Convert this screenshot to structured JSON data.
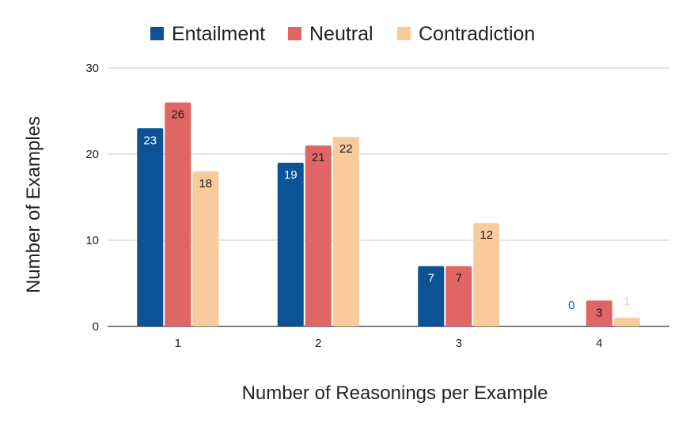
{
  "chart_data": {
    "type": "bar",
    "title": "",
    "categories": [
      "1",
      "2",
      "3",
      "4"
    ],
    "series": [
      {
        "name": "Entailment",
        "values": [
          23,
          19,
          7,
          0
        ],
        "color": "#0b5394",
        "label_color": "#ffffff",
        "zero_label_color": "#0b5394"
      },
      {
        "name": "Neutral",
        "values": [
          26,
          21,
          7,
          3
        ],
        "color": "#e06666",
        "label_color": "#1a1a1a",
        "zero_label_color": "#e06666"
      },
      {
        "name": "Contradiction",
        "values": [
          18,
          22,
          12,
          1
        ],
        "color": "#f9cb9c",
        "label_color": "#1a1a1a",
        "small_label_color": "#f9cb9c"
      }
    ],
    "xlabel": "Number of Reasonings per Example",
    "ylabel": "Number of Examples",
    "ylim": [
      0,
      30
    ],
    "yticks": [
      0,
      10,
      20,
      30
    ],
    "grid": true,
    "legend_position": "top-center"
  }
}
